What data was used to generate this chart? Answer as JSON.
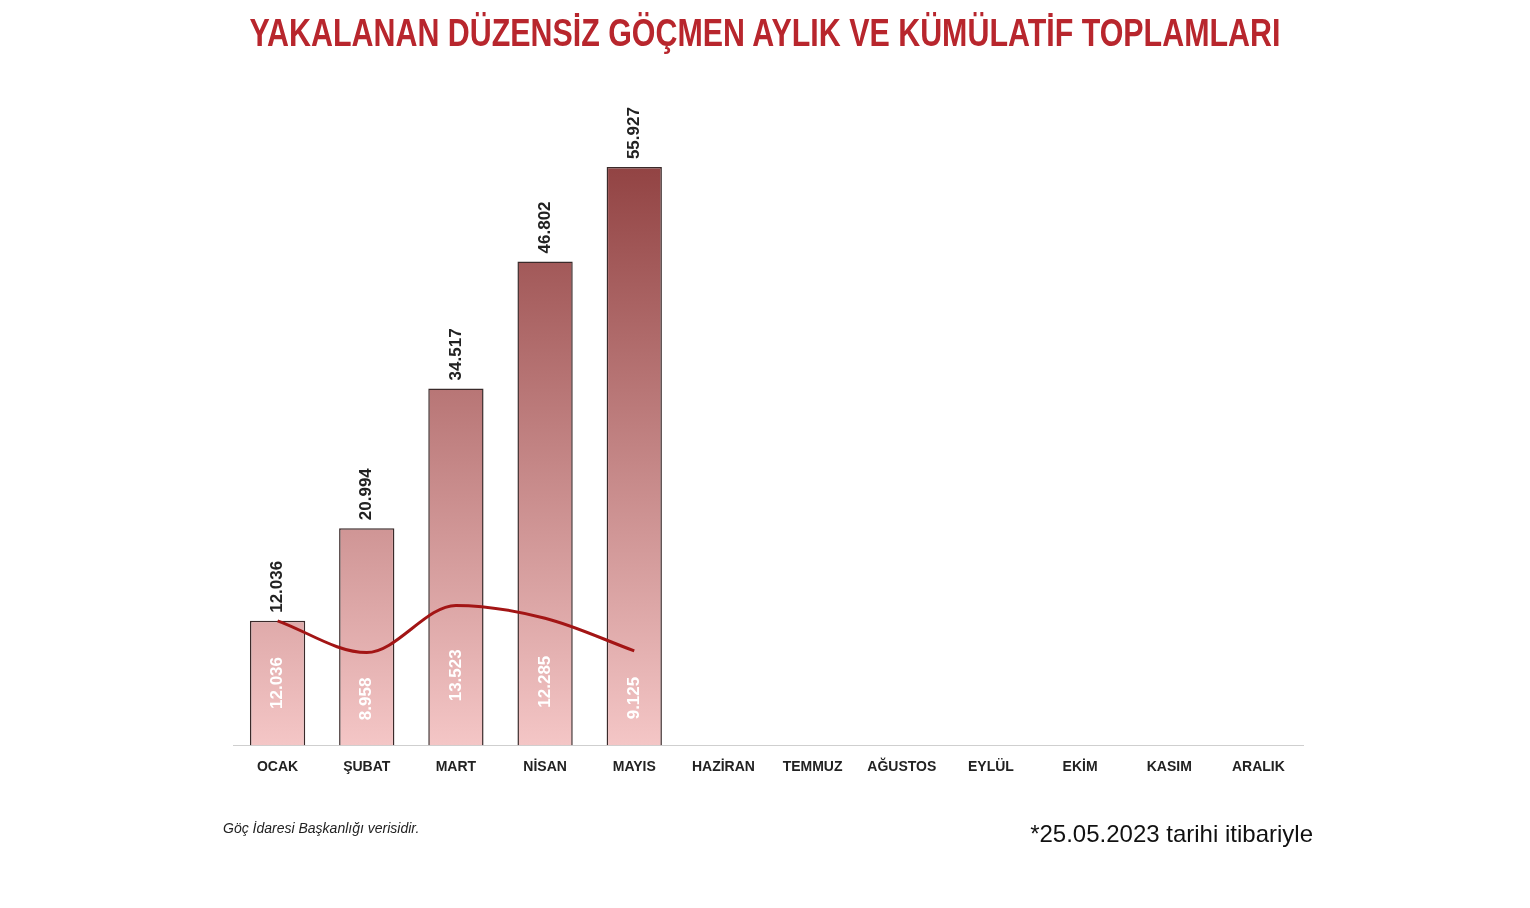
{
  "chart_data": {
    "type": "bar",
    "title": "YAKALANAN DÜZENSİZ GÖÇMEN AYLIK VE KÜMÜLATİF TOPLAMLARI",
    "categories": [
      "OCAK",
      "ŞUBAT",
      "MART",
      "NİSAN",
      "MAYIS",
      "HAZİRAN",
      "TEMMUZ",
      "AĞUSTOS",
      "EYLÜL",
      "EKİM",
      "KASIM",
      "ARALIK"
    ],
    "series": [
      {
        "color": "#8b3a3a",
        "values": [
          12036,
          20994,
          34517,
          46802,
          55927,
          null,
          null,
          null,
          null,
          null,
          null,
          null
        ],
        "value_labels": [
          "12.036",
          "20.994",
          "34.517",
          "46.802",
          "55.927",
          null,
          null,
          null,
          null,
          null,
          null,
          null
        ]
      },
      {
        "type": "line",
        "color": "#a31515",
        "values": [
          12036,
          8958,
          13523,
          12285,
          9125,
          null,
          null,
          null,
          null,
          null,
          null,
          null
        ],
        "value_labels": [
          "12.036",
          "8.958",
          "13.523",
          "12.285",
          "9.125",
          null,
          null,
          null,
          null,
          null,
          null,
          null
        ]
      }
    ],
    "legend": false,
    "grid": false,
    "marker": "none",
    "line_style": "solid",
    "annotations": [
      "Göç İdaresi Başkanlığı verisidir.",
      "*25.05.2023 tarihi itibariyle"
    ]
  }
}
